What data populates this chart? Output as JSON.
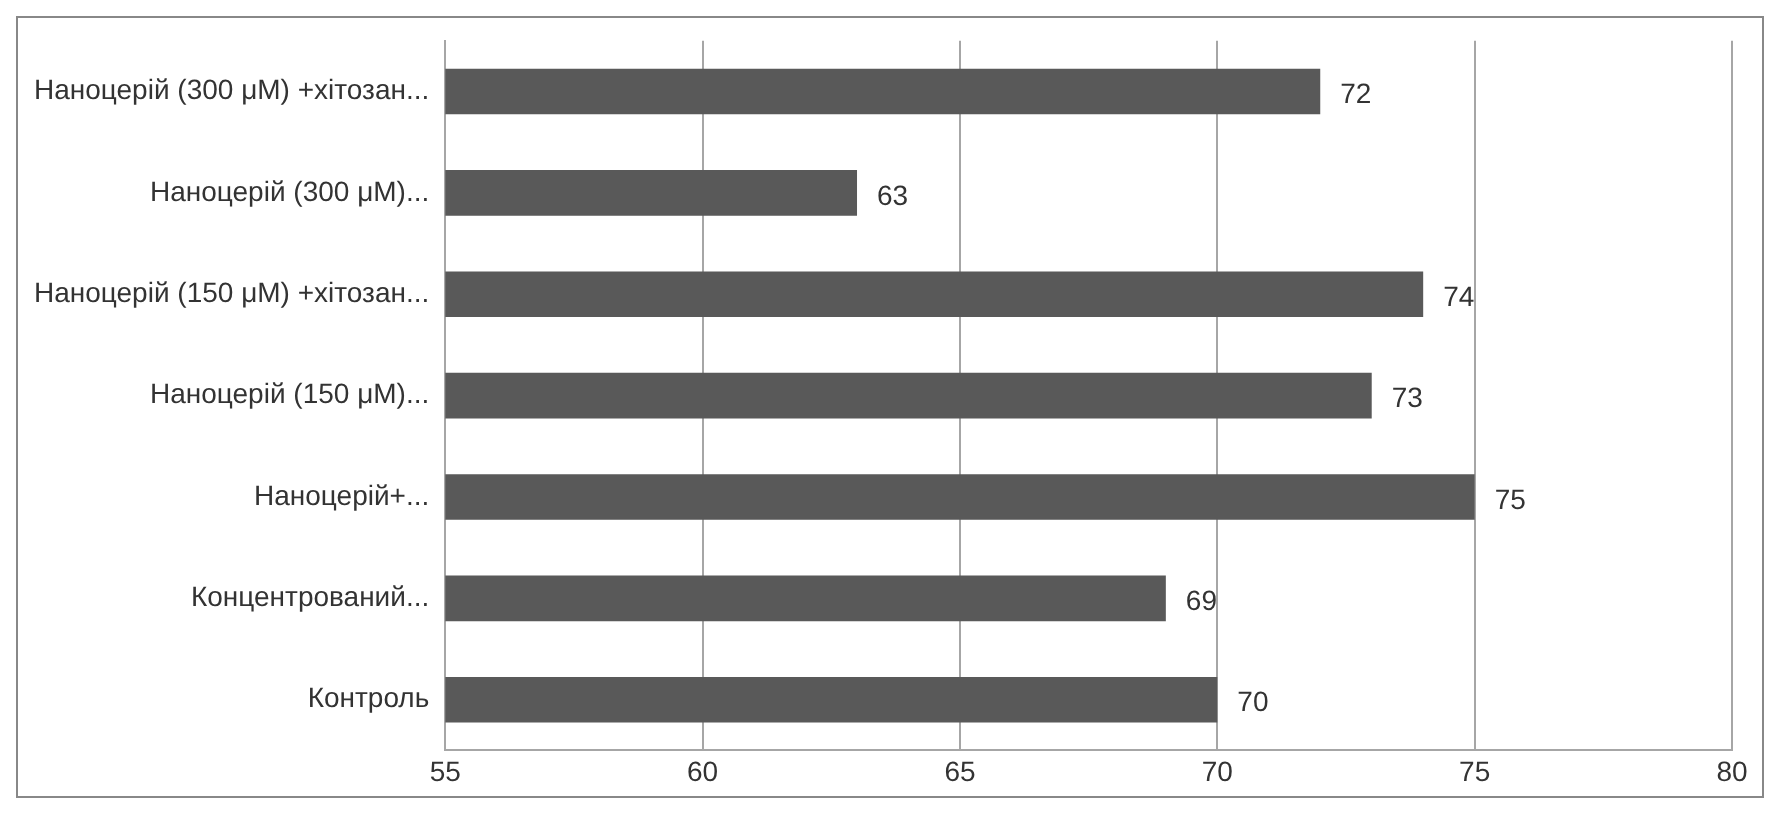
{
  "chart_data": {
    "type": "bar",
    "orientation": "horizontal",
    "categories": [
      "Наноцерій (300 μM) +хітозан...",
      "Наноцерій (300 μM)...",
      "Наноцерій (150 μM) +хітозан...",
      "Наноцерій (150 μM)...",
      "Наноцерій+...",
      "Концентрований...",
      "Контроль"
    ],
    "values": [
      72,
      63,
      74,
      73,
      75,
      69,
      70
    ],
    "color": "#595959",
    "xlim": [
      55,
      80
    ],
    "xticks": [
      55,
      60,
      65,
      70,
      75,
      80
    ],
    "grid": "x",
    "data_labels": true,
    "legend": false
  }
}
